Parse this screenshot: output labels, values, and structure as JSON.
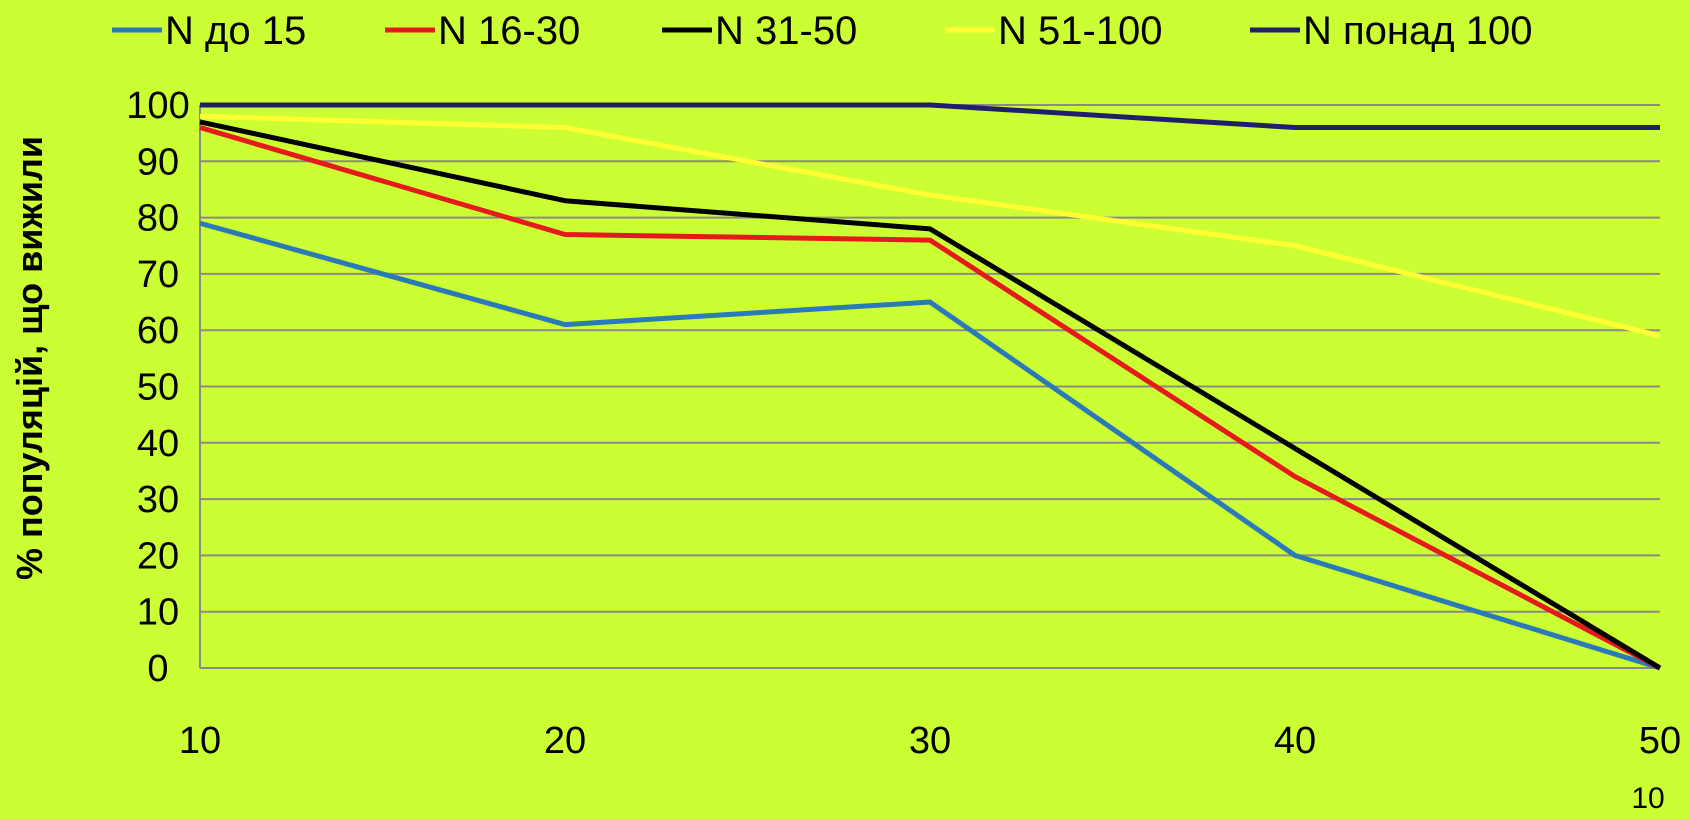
{
  "chart_data": {
    "type": "line",
    "title": "",
    "xlabel": "",
    "ylabel": "% популяцій, що вижили",
    "x": [
      10,
      20,
      30,
      40,
      50
    ],
    "x_ticks": [
      "10",
      "20",
      "30",
      "40",
      "50"
    ],
    "y_ticks": [
      "0",
      "10",
      "20",
      "30",
      "40",
      "50",
      "60",
      "70",
      "80",
      "90",
      "100"
    ],
    "xlim": [
      10,
      50
    ],
    "ylim": [
      0,
      100
    ],
    "grid": "horizontal",
    "legend_position": "top",
    "series": [
      {
        "name": "N до 15",
        "color": "#2a7ab8",
        "values": [
          79,
          61,
          65,
          20,
          0
        ]
      },
      {
        "name": "N 16-30",
        "color": "#e41a1c",
        "values": [
          96,
          77,
          76,
          34,
          0
        ]
      },
      {
        "name": "N 31-50",
        "color": "#000000",
        "values": [
          97,
          83,
          78,
          39,
          0
        ]
      },
      {
        "name": "N 51-100",
        "color": "#ffff33",
        "values": [
          98,
          96,
          84,
          75,
          59
        ]
      },
      {
        "name": "N понад 100",
        "color": "#1f1f6b",
        "values": [
          100,
          100,
          100,
          96,
          96
        ]
      }
    ],
    "page_number": "10"
  }
}
